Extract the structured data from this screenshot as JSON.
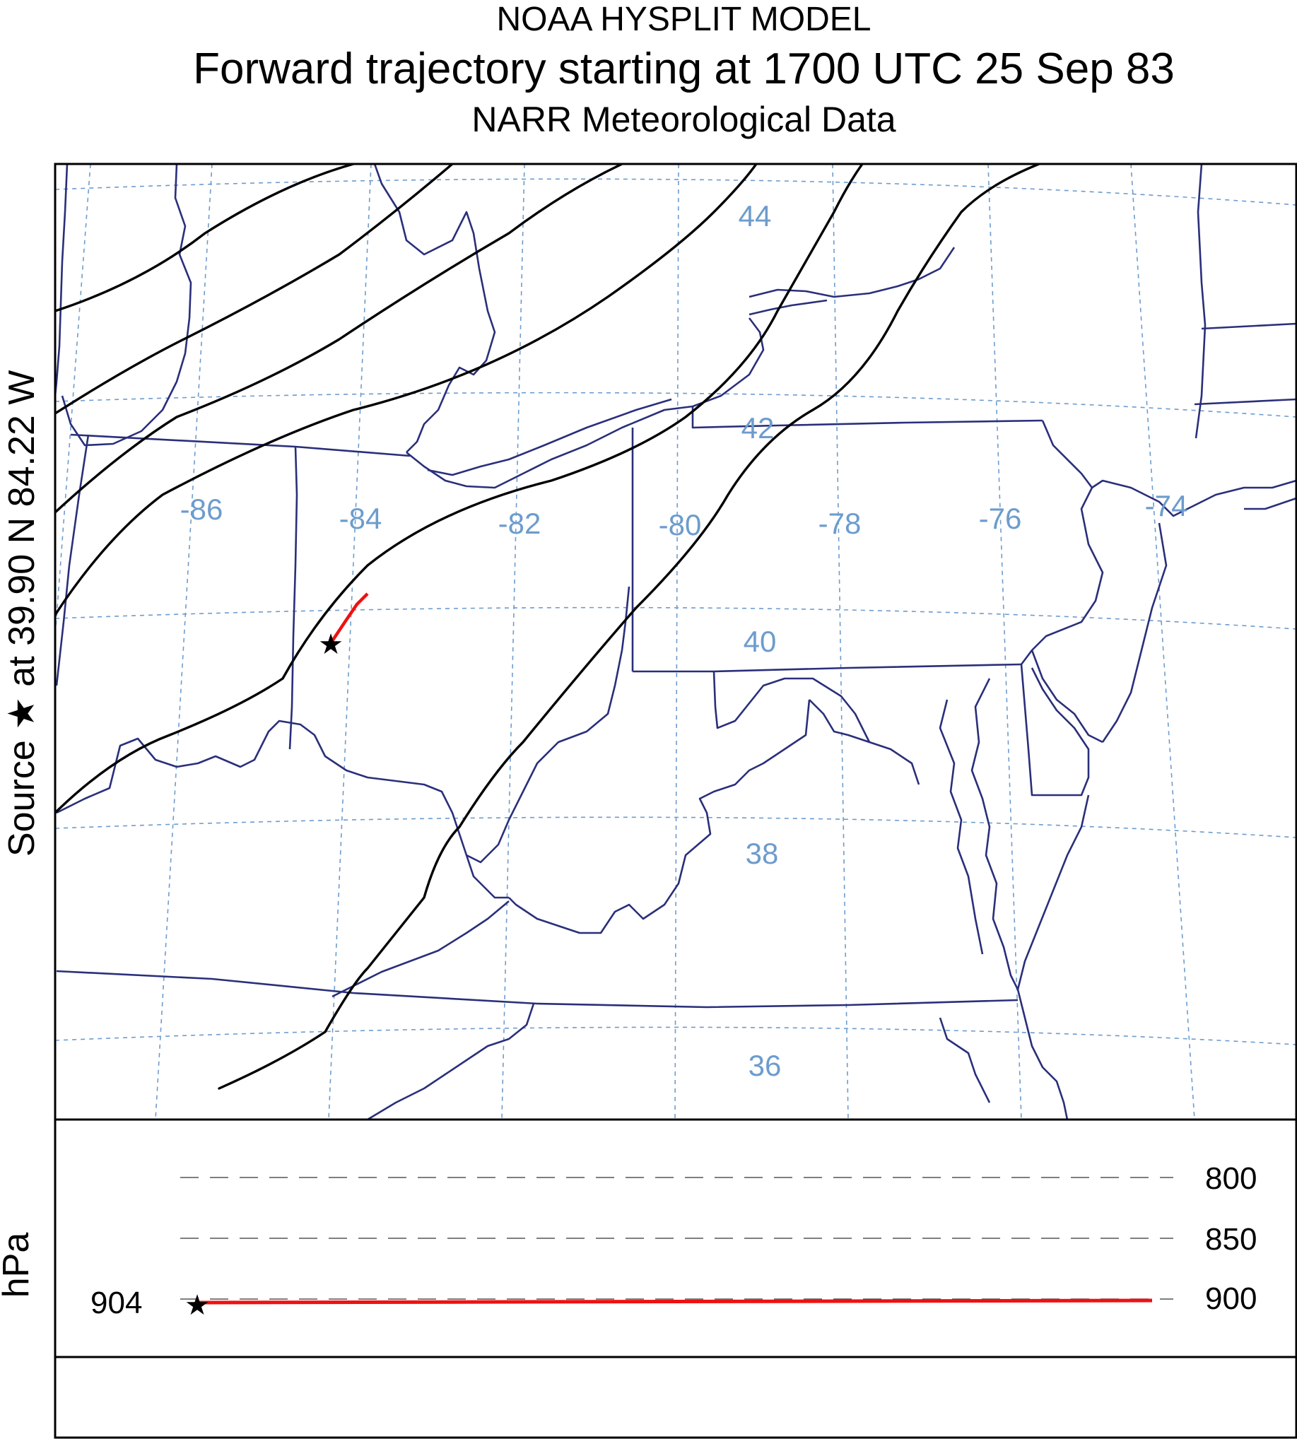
{
  "header": {
    "model": "NOAA HYSPLIT MODEL",
    "run": "Forward trajectory starting at 1700 UTC 25 Sep 83",
    "meteo": "NARR Meteorological Data"
  },
  "source_label": "Source ★ at 39.90 N 84.22 W",
  "map": {
    "longitude_labels": [
      "-86",
      "-84",
      "-82",
      "-80",
      "-78",
      "-76",
      "-74"
    ],
    "latitude_labels": [
      "44",
      "42",
      "40",
      "38",
      "36"
    ],
    "colors": {
      "border": "#2a2f7a",
      "grid": "#6d9ccd",
      "trajectory": "#ee1111",
      "contour": "#000000"
    }
  },
  "vertical": {
    "axis_label": "hPa",
    "start_level": "904",
    "levels": [
      "800",
      "850",
      "900"
    ]
  }
}
